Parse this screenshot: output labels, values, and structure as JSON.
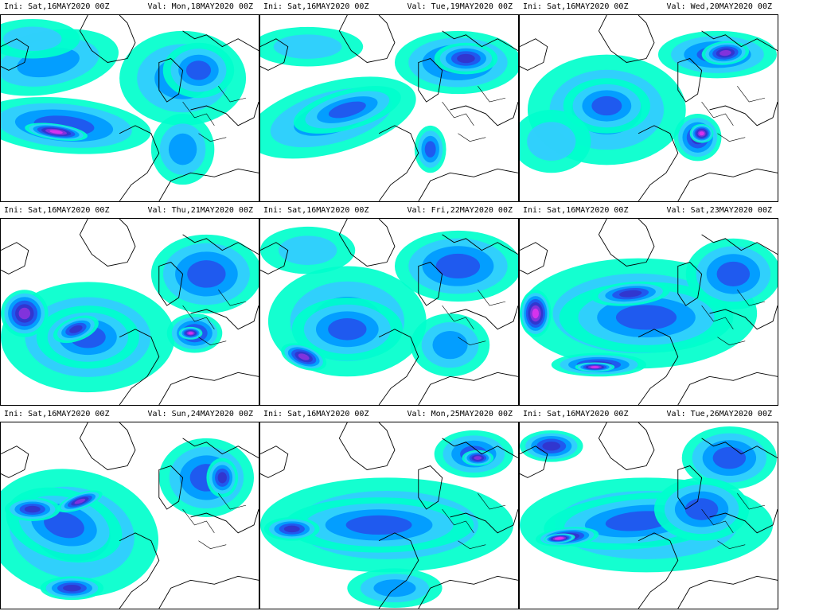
{
  "panels": [
    {
      "ini_label": "Ini:",
      "ini_date": "Sat,16MAY2020 00Z",
      "val_label": "Val:",
      "val_date": "Mon,18MAY2020 00Z"
    },
    {
      "ini_label": "Ini:",
      "ini_date": "Sat,16MAY2020 00Z",
      "val_label": "Val:",
      "val_date": "Tue,19MAY2020 00Z"
    },
    {
      "ini_label": "Ini:",
      "ini_date": "Sat,16MAY2020 00Z",
      "val_label": "Val:",
      "val_date": "Wed,20MAY2020 00Z"
    },
    {
      "ini_label": "Ini:",
      "ini_date": "Sat,16MAY2020 00Z",
      "val_label": "Val:",
      "val_date": "Thu,21MAY2020 00Z"
    },
    {
      "ini_label": "Ini:",
      "ini_date": "Sat,16MAY2020 00Z",
      "val_label": "Val:",
      "val_date": "Fri,22MAY2020 00Z"
    },
    {
      "ini_label": "Ini:",
      "ini_date": "Sat,16MAY2020 00Z",
      "val_label": "Val:",
      "val_date": "Sat,23MAY2020 00Z"
    },
    {
      "ini_label": "Ini:",
      "ini_date": "Sat,16MAY2020 00Z",
      "val_label": "Val:",
      "val_date": "Sun,24MAY2020 00Z"
    },
    {
      "ini_label": "Ini:",
      "ini_date": "Sat,16MAY2020 00Z",
      "val_label": "Val:",
      "val_date": "Mon,25MAY2020 00Z"
    },
    {
      "ini_label": "Ini:",
      "ini_date": "Sat,16MAY2020 00Z",
      "val_label": "Val:",
      "val_date": "Tue,26MAY2020 00Z"
    }
  ],
  "colors": {
    "shade_1": "#00ffcc",
    "shade_2": "#33ccff",
    "shade_3": "#0099ff",
    "shade_4": "#2255ee",
    "shade_5": "#3333cc",
    "shade_6": "#8833dd",
    "shade_7": "#dd33ee",
    "coastline": "#000000"
  }
}
